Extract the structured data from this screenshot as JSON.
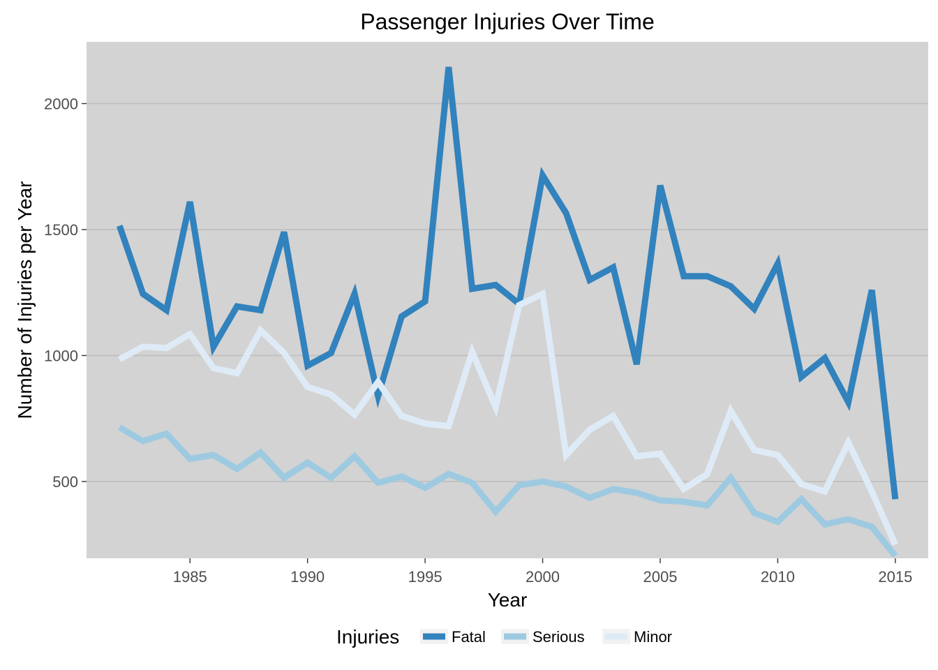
{
  "chart_data": {
    "type": "line",
    "title": "Passenger Injuries Over Time",
    "xlabel": "Year",
    "ylabel": "Number of Injuries per Year",
    "x": [
      1982,
      1983,
      1984,
      1985,
      1986,
      1987,
      1988,
      1989,
      1990,
      1991,
      1992,
      1993,
      1994,
      1995,
      1996,
      1997,
      1998,
      1999,
      2000,
      2001,
      2002,
      2003,
      2004,
      2005,
      2006,
      2007,
      2008,
      2009,
      2010,
      2011,
      2012,
      2013,
      2014,
      2015
    ],
    "xlim": [
      1980.6,
      2016.4
    ],
    "ylim": [
      195,
      2245
    ],
    "x_ticks": [
      1985,
      1990,
      1995,
      2000,
      2005,
      2010,
      2015
    ],
    "x_tick_labels": [
      "1985",
      "1990",
      "1995",
      "2000",
      "2005",
      "2010",
      "2015"
    ],
    "y_ticks": [
      500,
      1000,
      1500,
      2000
    ],
    "y_tick_labels": [
      "500",
      "1000",
      "1500",
      "2000"
    ],
    "grid": "horizontal major",
    "legend_title": "Injuries",
    "legend_position": "bottom",
    "background_color": "#d3d3d3",
    "grid_color": "#bebebe",
    "series": [
      {
        "name": "Fatal",
        "color": "#3182bd",
        "values": [
          1515,
          1245,
          1180,
          1610,
          1035,
          1195,
          1180,
          1490,
          960,
          1010,
          1245,
          840,
          1155,
          1215,
          2145,
          1265,
          1280,
          1205,
          1715,
          1565,
          1300,
          1350,
          965,
          1675,
          1315,
          1315,
          1275,
          1185,
          1365,
          915,
          990,
          815,
          1260,
          430
        ]
      },
      {
        "name": "Serious",
        "color": "#9ecae1",
        "values": [
          715,
          660,
          690,
          590,
          605,
          550,
          615,
          515,
          575,
          515,
          600,
          495,
          520,
          475,
          530,
          495,
          380,
          485,
          500,
          480,
          435,
          470,
          455,
          425,
          420,
          405,
          515,
          375,
          340,
          430,
          330,
          350,
          320,
          205
        ]
      },
      {
        "name": "Minor",
        "color": "#deebf7",
        "values": [
          985,
          1035,
          1030,
          1085,
          950,
          930,
          1100,
          1010,
          875,
          845,
          765,
          895,
          760,
          730,
          720,
          1015,
          795,
          1200,
          1245,
          605,
          705,
          760,
          600,
          610,
          470,
          530,
          780,
          625,
          605,
          490,
          460,
          655,
          460,
          250
        ]
      }
    ]
  }
}
